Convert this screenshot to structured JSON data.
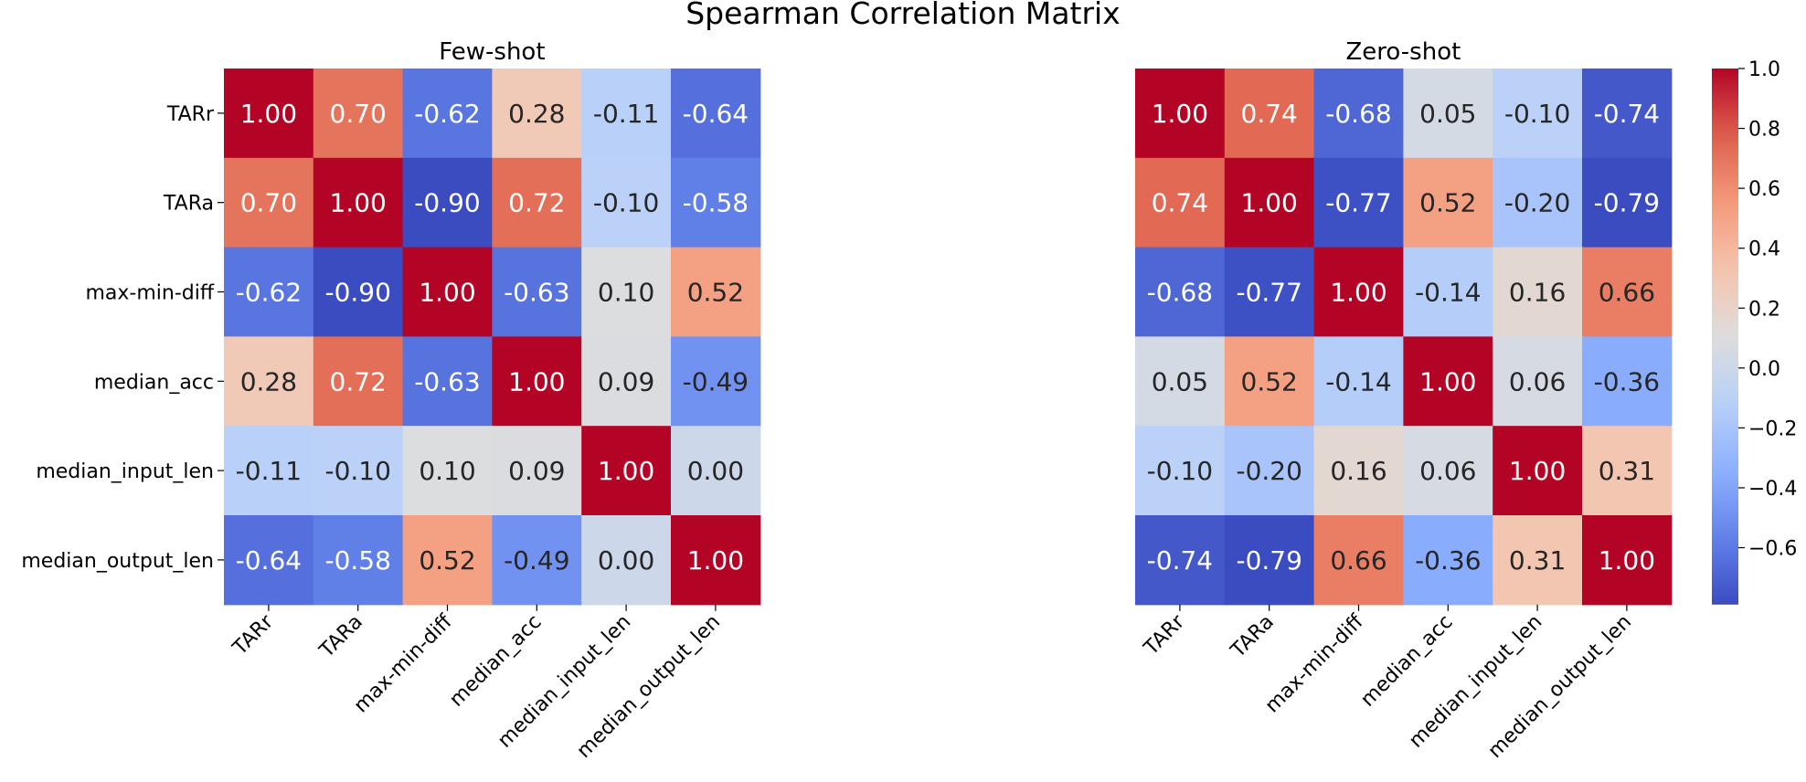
{
  "chart_data": {
    "type": "heatmap",
    "title": "Spearman Correlation Matrix",
    "labels": [
      "TARr",
      "TARa",
      "max-min-diff",
      "median_acc",
      "median_input_len",
      "median_output_len"
    ],
    "colormap": "coolwarm",
    "panels": [
      {
        "title": "Few-shot",
        "values": [
          [
            1.0,
            0.7,
            -0.62,
            0.28,
            -0.11,
            -0.64
          ],
          [
            0.7,
            1.0,
            -0.9,
            0.72,
            -0.1,
            -0.58
          ],
          [
            -0.62,
            -0.9,
            1.0,
            -0.63,
            0.1,
            0.52
          ],
          [
            0.28,
            0.72,
            -0.63,
            1.0,
            0.09,
            -0.49
          ],
          [
            -0.11,
            -0.1,
            0.1,
            0.09,
            1.0,
            0.0
          ],
          [
            -0.64,
            -0.58,
            0.52,
            -0.49,
            0.0,
            1.0
          ]
        ]
      },
      {
        "title": "Zero-shot",
        "values": [
          [
            1.0,
            0.74,
            -0.68,
            0.05,
            -0.1,
            -0.74
          ],
          [
            0.74,
            1.0,
            -0.77,
            0.52,
            -0.2,
            -0.79
          ],
          [
            -0.68,
            -0.77,
            1.0,
            -0.14,
            0.16,
            0.66
          ],
          [
            0.05,
            0.52,
            -0.14,
            1.0,
            0.06,
            -0.36
          ],
          [
            -0.1,
            -0.2,
            0.16,
            0.06,
            1.0,
            0.31
          ],
          [
            -0.74,
            -0.79,
            0.66,
            -0.36,
            0.31,
            1.0
          ]
        ]
      }
    ],
    "colorbar": {
      "range": [
        -0.79,
        1.0
      ],
      "ticks": [
        1.0,
        0.8,
        0.6,
        0.4,
        0.2,
        0.0,
        -0.2,
        -0.4,
        -0.6
      ],
      "tick_labels": [
        "1.0",
        "0.8",
        "0.6",
        "0.4",
        "0.2",
        "0.0",
        "−0.2",
        "−0.4",
        "−0.6"
      ]
    }
  }
}
